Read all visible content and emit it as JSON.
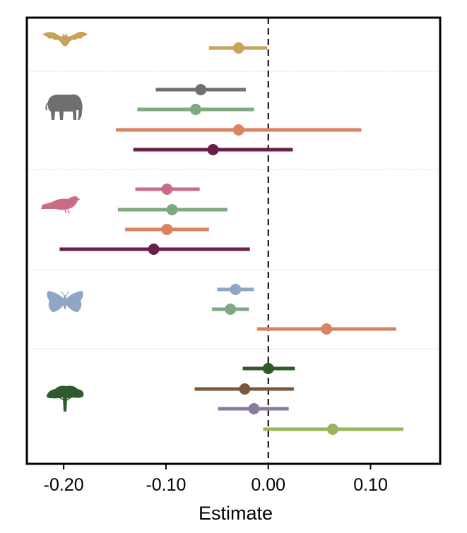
{
  "chart_data": {
    "type": "forest",
    "xlabel": "Estimate",
    "xlim": [
      -0.236,
      0.168
    ],
    "xticks": [
      -0.2,
      -0.1,
      0.0,
      0.1
    ],
    "xtick_labels": [
      "-0.20",
      "-0.10",
      "0.00",
      "0.10"
    ],
    "reference_line": 0,
    "grid": false,
    "groups": [
      {
        "icon": "bat-icon",
        "color": "#c9a25a",
        "rows": [
          {
            "estimate": -0.029,
            "low": -0.058,
            "high": -0.001,
            "color": "#c9a25a"
          }
        ]
      },
      {
        "icon": "elephant-icon",
        "color": "#6f6f6f",
        "rows": [
          {
            "estimate": -0.066,
            "low": -0.11,
            "high": -0.022,
            "color": "#6f6f6f"
          },
          {
            "estimate": -0.071,
            "low": -0.128,
            "high": -0.014,
            "color": "#7da882"
          },
          {
            "estimate": -0.029,
            "low": -0.149,
            "high": 0.091,
            "color": "#d98361"
          },
          {
            "estimate": -0.054,
            "low": -0.132,
            "high": 0.024,
            "color": "#6b1e48"
          }
        ]
      },
      {
        "icon": "bird-icon",
        "color": "#c96d86",
        "rows": [
          {
            "estimate": -0.099,
            "low": -0.13,
            "high": -0.067,
            "color": "#c96d86"
          },
          {
            "estimate": -0.094,
            "low": -0.147,
            "high": -0.04,
            "color": "#7da882"
          },
          {
            "estimate": -0.099,
            "low": -0.14,
            "high": -0.058,
            "color": "#d98361"
          },
          {
            "estimate": -0.112,
            "low": -0.204,
            "high": -0.018,
            "color": "#6b1e48"
          }
        ]
      },
      {
        "icon": "moth-icon",
        "color": "#8fa6c4",
        "rows": [
          {
            "estimate": -0.032,
            "low": -0.05,
            "high": -0.014,
            "color": "#8fa6c4"
          },
          {
            "estimate": -0.037,
            "low": -0.055,
            "high": -0.019,
            "color": "#7da882"
          },
          {
            "estimate": 0.057,
            "low": -0.011,
            "high": 0.125,
            "color": "#d98361"
          }
        ]
      },
      {
        "icon": "tree-icon",
        "color": "#2e5a2c",
        "rows": [
          {
            "estimate": 0.0,
            "low": -0.025,
            "high": 0.026,
            "color": "#2e5a2c"
          },
          {
            "estimate": -0.023,
            "low": -0.072,
            "high": 0.025,
            "color": "#7a5a3c"
          },
          {
            "estimate": -0.014,
            "low": -0.049,
            "high": 0.02,
            "color": "#8a7aa0"
          },
          {
            "estimate": 0.063,
            "low": -0.005,
            "high": 0.132,
            "color": "#9cb55a"
          }
        ]
      }
    ]
  }
}
